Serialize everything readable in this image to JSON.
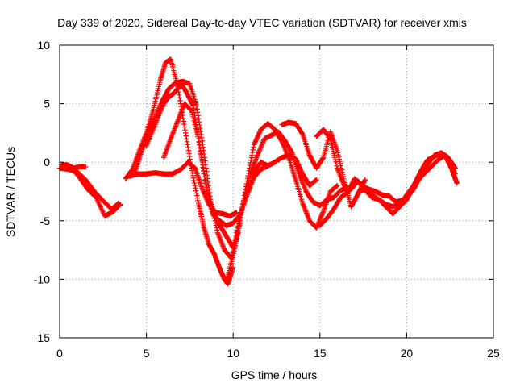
{
  "chart_data": {
    "type": "scatter",
    "title": "Day 339 of 2020, Sidereal Day-to-day VTEC variation (SDTVAR) for receiver xmis",
    "xlabel": "GPS time / hours",
    "ylabel": "SDTVAR / TECUs",
    "xlim": [
      0,
      25
    ],
    "ylim": [
      -15,
      10
    ],
    "xticks": [
      0,
      5,
      10,
      15,
      20,
      25
    ],
    "yticks": [
      -15,
      -10,
      -5,
      0,
      5,
      10
    ],
    "grid": true,
    "marker": "+",
    "color": "#ff0000",
    "series": [
      {
        "name": "trace-1",
        "x": [
          0.0,
          0.5,
          1.0,
          1.5,
          2.0,
          2.5,
          3.0,
          3.4
        ],
        "y": [
          -0.5,
          -0.6,
          -0.8,
          -1.5,
          -2.5,
          -3.3,
          -4.0,
          -3.5
        ]
      },
      {
        "name": "trace-2",
        "x": [
          0.1,
          0.6,
          1.1,
          1.6,
          2.1,
          2.6,
          3.1,
          3.5
        ],
        "y": [
          -0.2,
          -0.4,
          -1.2,
          -2.3,
          -3.0,
          -4.6,
          -4.2,
          -3.6
        ]
      },
      {
        "name": "trace-3",
        "x": [
          0.2,
          0.4,
          0.8,
          1.2,
          1.5
        ],
        "y": [
          -0.3,
          -0.2,
          -0.5,
          -0.4,
          -0.4
        ]
      },
      {
        "name": "trace-4",
        "x": [
          3.8,
          4.2,
          4.6,
          5.0,
          5.4,
          5.8,
          6.1,
          6.4,
          6.8,
          7.2,
          7.6,
          8.0,
          8.3,
          8.6,
          8.9,
          9.2,
          9.5,
          9.7,
          10.0
        ],
        "y": [
          -1.4,
          -0.6,
          1.0,
          2.5,
          4.5,
          7.0,
          8.5,
          8.8,
          6.5,
          3.0,
          -0.5,
          -3.5,
          -5.5,
          -7.0,
          -7.8,
          -9.0,
          -10.0,
          -10.4,
          -9.0
        ]
      },
      {
        "name": "trace-5",
        "x": [
          4.3,
          4.7,
          5.1,
          5.5,
          5.9,
          6.3,
          6.7,
          7.1,
          7.5,
          7.9,
          8.3,
          8.7,
          9.1,
          9.5,
          9.9,
          10.3
        ],
        "y": [
          -1.0,
          0.8,
          2.6,
          3.8,
          5.2,
          6.3,
          6.8,
          6.9,
          6.7,
          4.8,
          1.0,
          -3.2,
          -6.0,
          -7.5,
          -8.2,
          -6.0
        ]
      },
      {
        "name": "trace-6",
        "x": [
          4.0,
          4.5,
          5.0,
          5.5,
          6.0,
          6.5,
          7.0,
          7.4,
          7.8,
          8.2,
          8.6,
          9.0,
          9.4,
          9.8,
          10.2
        ],
        "y": [
          -1.2,
          -1.0,
          -1.0,
          -0.9,
          -1.0,
          -1.0,
          -0.6,
          0.0,
          -0.5,
          -2.2,
          -3.6,
          -4.3,
          -4.4,
          -4.6,
          -4.3
        ]
      },
      {
        "name": "trace-7",
        "x": [
          5.0,
          5.5,
          6.0,
          6.3,
          6.6,
          7.0,
          7.3,
          7.7,
          8.0,
          8.4,
          8.8,
          9.2,
          9.6,
          10.0,
          10.4
        ],
        "y": [
          1.4,
          3.2,
          5.0,
          5.6,
          5.9,
          6.7,
          6.0,
          4.8,
          2.0,
          -1.8,
          -4.2,
          -5.3,
          -6.3,
          -7.3,
          -5.2
        ]
      },
      {
        "name": "trace-8",
        "x": [
          6.0,
          6.4,
          6.8,
          7.2,
          7.6,
          8.0,
          8.4,
          8.8,
          9.2,
          9.6,
          10.0,
          10.4,
          10.8,
          11.2,
          11.6,
          12.0
        ],
        "y": [
          0.4,
          2.0,
          3.5,
          5.0,
          4.4,
          2.0,
          -1.5,
          -4.4,
          -5.0,
          -5.4,
          -5.2,
          -4.5,
          -2.8,
          -0.8,
          0.0,
          -0.3
        ]
      },
      {
        "name": "trace-9",
        "x": [
          9.6,
          10.0,
          10.4,
          10.8,
          11.2,
          11.6,
          12.0,
          12.4,
          12.8,
          13.2,
          13.6,
          14.0,
          14.4,
          14.8,
          15.2,
          15.6,
          16.0
        ],
        "y": [
          -10.2,
          -8.0,
          -5.0,
          -1.6,
          1.5,
          2.8,
          3.3,
          2.8,
          1.8,
          0.4,
          -1.5,
          -3.5,
          -5.0,
          -5.6,
          -4.2,
          -2.5,
          -2.0
        ]
      },
      {
        "name": "trace-10",
        "x": [
          10.2,
          10.6,
          11.0,
          11.4,
          11.8,
          12.2,
          12.6,
          13.0,
          13.4,
          13.8,
          14.2,
          14.6,
          15.0,
          15.4,
          15.8,
          16.2,
          16.6
        ],
        "y": [
          -6.0,
          -3.4,
          -1.0,
          0.6,
          2.0,
          2.3,
          2.6,
          1.8,
          0.8,
          -1.0,
          -2.5,
          -3.4,
          -3.7,
          -3.2,
          -3.0,
          -2.4,
          -2.2
        ]
      },
      {
        "name": "trace-11",
        "x": [
          10.8,
          11.2,
          11.6,
          12.0,
          12.4,
          12.8,
          13.2,
          13.6,
          14.0,
          14.4,
          14.8
        ],
        "y": [
          -2.8,
          -1.3,
          -0.6,
          -0.3,
          0.0,
          0.4,
          0.6,
          0.3,
          -1.0,
          -2.0,
          -1.5
        ]
      },
      {
        "name": "trace-12",
        "x": [
          12.8,
          13.2,
          13.6,
          14.0,
          14.4,
          14.8,
          15.2,
          15.6,
          16.0,
          16.4,
          16.8,
          17.2,
          17.6
        ],
        "y": [
          3.2,
          3.4,
          3.3,
          2.4,
          0.6,
          -0.5,
          0.4,
          2.6,
          1.0,
          -1.6,
          -3.8,
          -2.7,
          -1.5
        ]
      },
      {
        "name": "trace-13",
        "x": [
          14.8,
          15.2,
          15.6,
          16.0,
          16.4,
          16.8,
          17.2,
          17.6,
          18.0,
          18.4,
          18.8,
          19.2,
          19.6,
          20.0,
          20.4,
          20.8,
          21.2,
          21.6,
          22.0,
          22.4,
          22.8
        ],
        "y": [
          2.2,
          2.8,
          2.0,
          -0.5,
          -2.0,
          -2.3,
          -1.6,
          -2.4,
          -3.0,
          -3.2,
          -3.8,
          -4.4,
          -3.8,
          -3.2,
          -2.0,
          -0.8,
          0.2,
          0.5,
          0.8,
          0.4,
          -0.5
        ]
      },
      {
        "name": "trace-14",
        "x": [
          15.0,
          15.4,
          15.8,
          16.2,
          16.6,
          17.0,
          17.4,
          17.8,
          18.2,
          18.6,
          19.0,
          19.4,
          19.8,
          20.2,
          20.6,
          21.0,
          21.4,
          21.8,
          22.2,
          22.6,
          22.9
        ],
        "y": [
          -5.4,
          -4.8,
          -4.0,
          -3.0,
          -2.6,
          -1.4,
          -2.0,
          -2.3,
          -2.5,
          -2.8,
          -2.9,
          -3.4,
          -3.2,
          -2.4,
          -1.6,
          -1.0,
          -0.4,
          0.2,
          0.6,
          -0.6,
          -1.8
        ]
      },
      {
        "name": "trace-15",
        "x": [
          17.2,
          17.6,
          18.0,
          18.4,
          18.8,
          19.2,
          19.6,
          20.0,
          20.4,
          20.8,
          21.2,
          21.6,
          22.0,
          22.4,
          22.8
        ],
        "y": [
          -2.6,
          -2.3,
          -2.8,
          -3.2,
          -3.6,
          -3.8,
          -3.5,
          -3.1,
          -2.3,
          -1.2,
          -0.2,
          0.6,
          0.8,
          0.2,
          -1.0
        ]
      }
    ]
  }
}
